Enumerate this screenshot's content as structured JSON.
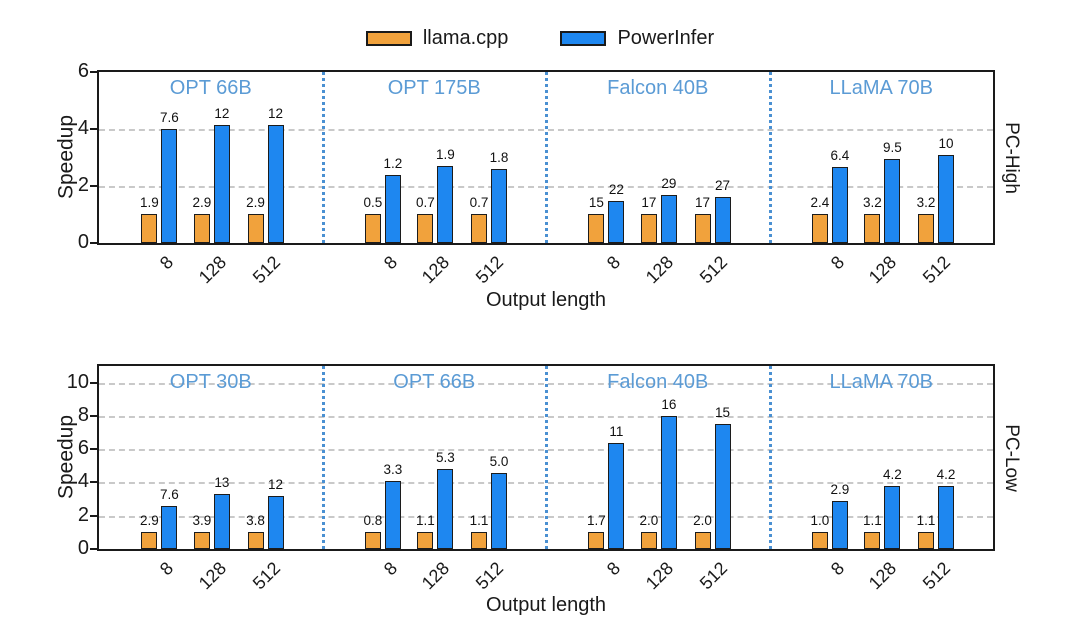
{
  "legend": {
    "items": [
      {
        "label": "llama.cpp",
        "color": "#f1a23c"
      },
      {
        "label": "PowerInfer",
        "color": "#1e87f0"
      }
    ]
  },
  "colors": {
    "llama_bar": "#f1a23c",
    "powerinfer_bar": "#1e87f0",
    "panel_title": "#5b9bd5",
    "separator": "#4a90d2",
    "gridline": "#c9c9c9",
    "axis": "#1a1a1a"
  },
  "chart_data": [
    {
      "type": "bar",
      "row_label": "PC-High",
      "ylabel": "Speedup",
      "xlabel": "Output length",
      "ylim": [
        0,
        6
      ],
      "yticks": [
        0,
        2,
        4,
        6
      ],
      "gridlines": [
        2,
        4
      ],
      "grid": "dashed-horizontal",
      "legend_position": "top-center",
      "categories": [
        "8",
        "128",
        "512"
      ],
      "series_names": [
        "llama.cpp",
        "PowerInfer"
      ],
      "panels": [
        {
          "title": "OPT 66B",
          "llama": {
            "labels": [
              "1.9",
              "2.9",
              "2.9"
            ],
            "heights": [
              1.0,
              1.0,
              1.0
            ]
          },
          "power": {
            "labels": [
              "7.6",
              "12",
              "12"
            ],
            "heights": [
              4.0,
              4.15,
              4.15
            ]
          }
        },
        {
          "title": "OPT 175B",
          "llama": {
            "labels": [
              "0.5",
              "0.7",
              "0.7"
            ],
            "heights": [
              1.0,
              1.0,
              1.0
            ]
          },
          "power": {
            "labels": [
              "1.2",
              "1.9",
              "1.8"
            ],
            "heights": [
              2.4,
              2.7,
              2.6
            ]
          }
        },
        {
          "title": "Falcon 40B",
          "llama": {
            "labels": [
              "15",
              "17",
              "17"
            ],
            "heights": [
              1.0,
              1.0,
              1.0
            ]
          },
          "power": {
            "labels": [
              "22",
              "29",
              "27"
            ],
            "heights": [
              1.47,
              1.7,
              1.6
            ]
          }
        },
        {
          "title": "LLaMA 70B",
          "llama": {
            "labels": [
              "2.4",
              "3.2",
              "3.2"
            ],
            "heights": [
              1.0,
              1.0,
              1.0
            ]
          },
          "power": {
            "labels": [
              "6.4",
              "9.5",
              "10"
            ],
            "heights": [
              2.65,
              2.95,
              3.1
            ]
          }
        }
      ]
    },
    {
      "type": "bar",
      "row_label": "PC-Low",
      "ylabel": "Speedup",
      "xlabel": "Output length",
      "ylim": [
        0,
        11
      ],
      "yticks": [
        0,
        2,
        4,
        6,
        8,
        10
      ],
      "gridlines": [
        2,
        4,
        6,
        8,
        10
      ],
      "grid": "dashed-horizontal",
      "legend_position": "top-center",
      "categories": [
        "8",
        "128",
        "512"
      ],
      "series_names": [
        "llama.cpp",
        "PowerInfer"
      ],
      "panels": [
        {
          "title": "OPT 30B",
          "llama": {
            "labels": [
              "2.9",
              "3.9",
              "3.8"
            ],
            "heights": [
              1.0,
              1.0,
              1.0
            ]
          },
          "power": {
            "labels": [
              "7.6",
              "13",
              "12"
            ],
            "heights": [
              2.6,
              3.3,
              3.2
            ]
          }
        },
        {
          "title": "OPT 66B",
          "llama": {
            "labels": [
              "0.8",
              "1.1",
              "1.1"
            ],
            "heights": [
              1.0,
              1.0,
              1.0
            ]
          },
          "power": {
            "labels": [
              "3.3",
              "5.3",
              "5.0"
            ],
            "heights": [
              4.1,
              4.8,
              4.55
            ]
          }
        },
        {
          "title": "Falcon 40B",
          "llama": {
            "labels": [
              "1.7",
              "2.0",
              "2.0"
            ],
            "heights": [
              1.0,
              1.0,
              1.0
            ]
          },
          "power": {
            "labels": [
              "11",
              "16",
              "15"
            ],
            "heights": [
              6.4,
              8.0,
              7.5
            ]
          }
        },
        {
          "title": "LLaMA 70B",
          "llama": {
            "labels": [
              "1.0",
              "1.1",
              "1.1"
            ],
            "heights": [
              1.0,
              1.0,
              1.0
            ]
          },
          "power": {
            "labels": [
              "2.9",
              "4.2",
              "4.2"
            ],
            "heights": [
              2.9,
              3.8,
              3.8
            ]
          }
        }
      ]
    }
  ]
}
